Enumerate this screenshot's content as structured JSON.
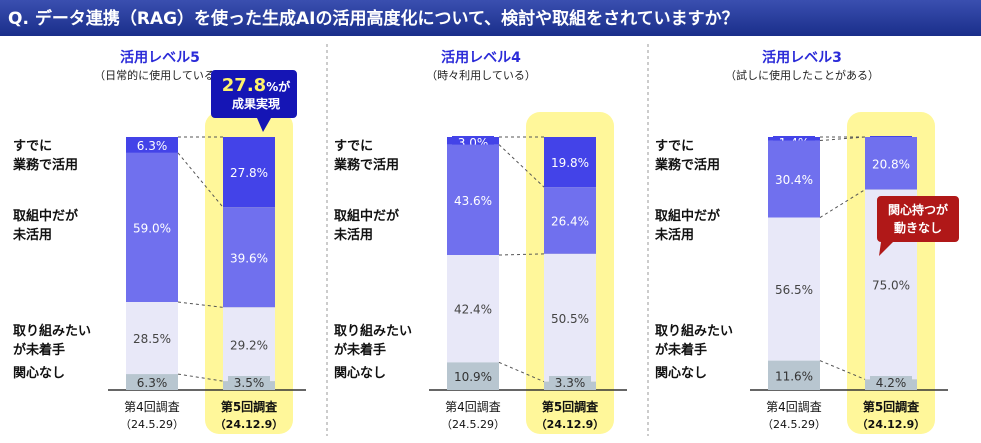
{
  "question": "Q. データ連携（RAG）を使った生成AIの活用高度化について、検討や取組をされていますか？",
  "colors": {
    "title_bar": "#1a2e8a",
    "done": "#4343e8",
    "in_progress": "#7070ee",
    "not_started": "#e8e8f8",
    "no_interest": "#b8c6d0",
    "highlight": "#fff79a",
    "blue_callout": "#1515b5",
    "red_callout": "#b01818"
  },
  "chart_data": [
    {
      "type": "bar",
      "stacked": true,
      "title": "活用レベル5",
      "subtitle": "（日常的に使用している）",
      "categories": [
        "第4回調査",
        "第5回調査"
      ],
      "dates": [
        "（24.5.29）",
        "（24.12.9）"
      ],
      "highlighted_category": "第5回調査",
      "series": [
        {
          "name": "すでに業務で活用",
          "values": [
            6.3,
            27.8
          ]
        },
        {
          "name": "取組中だが未活用",
          "values": [
            59.0,
            39.6
          ]
        },
        {
          "name": "取り組みたいが未着手",
          "values": [
            28.5,
            29.2
          ]
        },
        {
          "name": "関心なし",
          "values": [
            6.3,
            3.5
          ]
        }
      ],
      "ylim": [
        0,
        100
      ],
      "callout": {
        "value": "27.8",
        "unit": "%が",
        "line2": "成果実現",
        "color": "blue"
      }
    },
    {
      "type": "bar",
      "stacked": true,
      "title": "活用レベル4",
      "subtitle": "（時々利用している）",
      "categories": [
        "第4回調査",
        "第5回調査"
      ],
      "dates": [
        "（24.5.29）",
        "（24.12.9）"
      ],
      "highlighted_category": "第5回調査",
      "series": [
        {
          "name": "すでに業務で活用",
          "values": [
            3.0,
            19.8
          ]
        },
        {
          "name": "取組中だが未活用",
          "values": [
            43.6,
            26.4
          ]
        },
        {
          "name": "取り組みたいが未着手",
          "values": [
            42.4,
            50.5
          ]
        },
        {
          "name": "関心なし",
          "values": [
            10.9,
            3.3
          ]
        }
      ],
      "ylim": [
        0,
        100
      ]
    },
    {
      "type": "bar",
      "stacked": true,
      "title": "活用レベル3",
      "subtitle": "（試しに使用したことがある）",
      "categories": [
        "第4回調査",
        "第5回調査"
      ],
      "dates": [
        "（24.5.29）",
        "（24.12.9）"
      ],
      "highlighted_category": "第5回調査",
      "series": [
        {
          "name": "すでに業務で活用",
          "values": [
            1.4,
            0.0
          ]
        },
        {
          "name": "取組中だが未活用",
          "values": [
            30.4,
            20.8
          ]
        },
        {
          "name": "取り組みたいが未着手",
          "values": [
            56.5,
            75.0
          ]
        },
        {
          "name": "関心なし",
          "values": [
            11.6,
            4.2
          ]
        }
      ],
      "ylim": [
        0,
        100
      ],
      "callout": {
        "line1": "関心持つが",
        "line2": "動きなし",
        "color": "red"
      }
    }
  ],
  "row_labels": [
    [
      "すでに",
      "業務で活用"
    ],
    [
      "取組中だが",
      "未活用"
    ],
    [
      "取り組みたい",
      "が未着手"
    ],
    [
      "関心なし"
    ]
  ]
}
